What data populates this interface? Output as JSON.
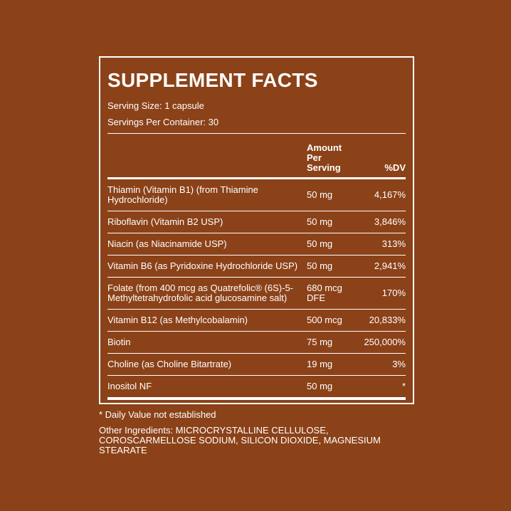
{
  "panel": {
    "title": "SUPPLEMENT FACTS",
    "serving_size": "Serving Size: 1 capsule",
    "servings_per_container": "Servings Per Container: 30",
    "table": {
      "header": [
        "Amount Per Serving",
        "%DV"
      ],
      "rows": [
        [
          "Thiamin (Vitamin B1) (from Thiamine Hydrochloride)",
          "50 mg",
          "4,167%"
        ],
        [
          "Riboflavin (Vitamin B2 USP)",
          "50 mg",
          "3,846%"
        ],
        [
          "Niacin (as Niacinamide USP)",
          "50 mg",
          "313%"
        ],
        [
          "Vitamin B6 (as Pyridoxine Hydrochloride USP)",
          "50 mg",
          "2,941%"
        ],
        [
          "Folate (from 400 mcg as Quatrefolic® (6S)-5-Methyltetrahydrofolic acid glucosamine salt)",
          "680 mcg DFE",
          "170%"
        ],
        [
          "Vitamin B12 (as Methylcobalamin)",
          "500 mcg",
          "20,833%"
        ],
        [
          "Biotin",
          "75 mg",
          "250,000%"
        ],
        [
          "Choline (as Choline Bitartrate)",
          "19 mg",
          "3%"
        ],
        [
          "Inositol NF",
          "50 mg",
          "*"
        ]
      ]
    }
  },
  "footnote": "* Daily Value not established",
  "other_ingredients": "Other Ingredients: MICROCRYSTALLINE CELLULOSE, COROSCARMELLOSE SODIUM, SILICON DIOXIDE, MAGNESIUM STEARATE"
}
